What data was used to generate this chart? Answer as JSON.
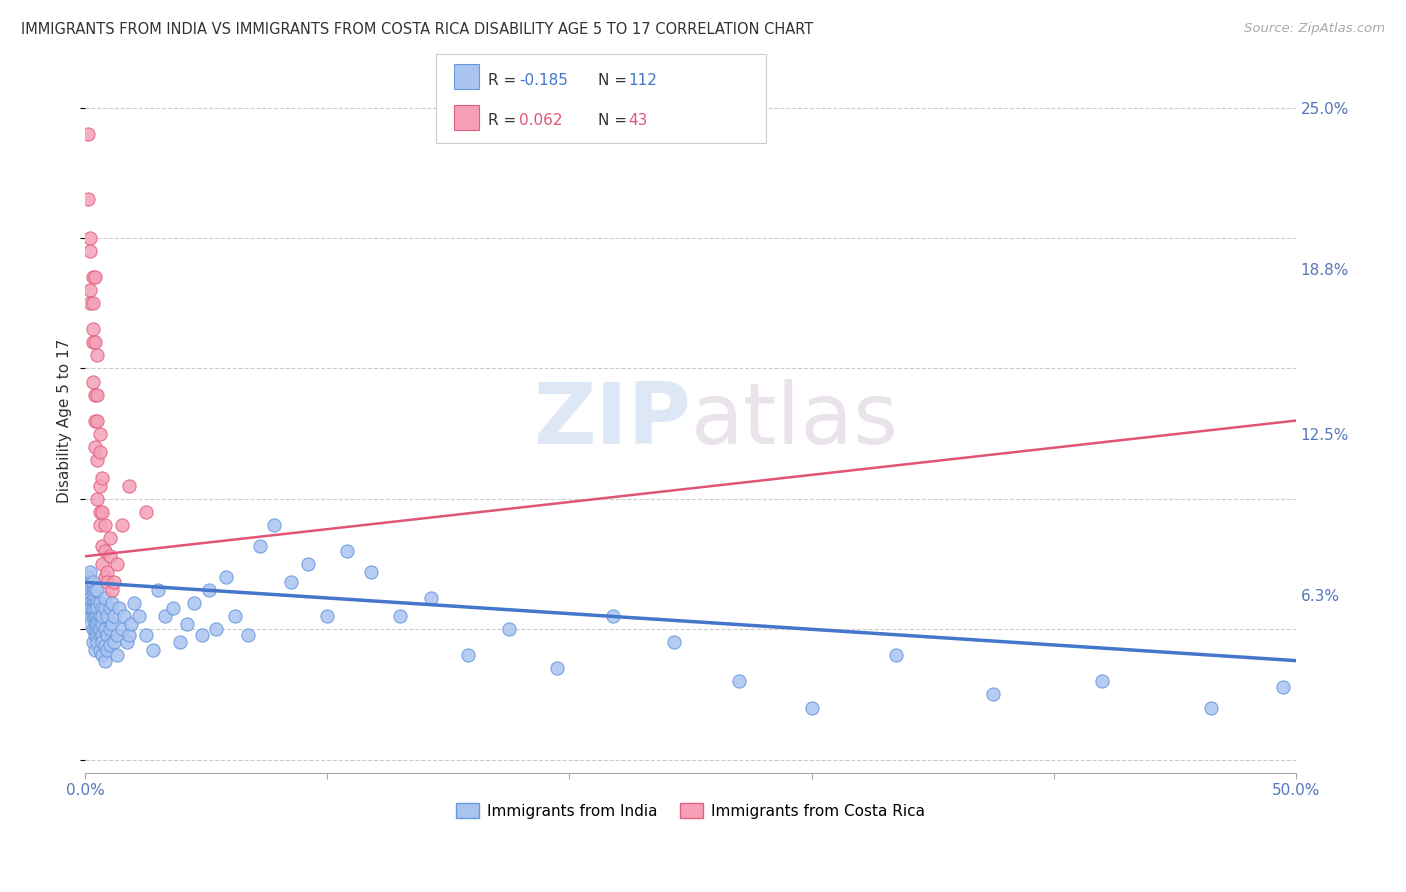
{
  "title": "IMMIGRANTS FROM INDIA VS IMMIGRANTS FROM COSTA RICA DISABILITY AGE 5 TO 17 CORRELATION CHART",
  "source": "Source: ZipAtlas.com",
  "ylabel": "Disability Age 5 to 17",
  "xlim": [
    0.0,
    0.5
  ],
  "ylim": [
    -0.005,
    0.265
  ],
  "xtick_positions": [
    0.0,
    0.1,
    0.2,
    0.3,
    0.4,
    0.5
  ],
  "xticklabels_ends": [
    "0.0%",
    "50.0%"
  ],
  "ytick_positions": [
    0.063,
    0.125,
    0.188,
    0.25
  ],
  "ytick_labels": [
    "6.3%",
    "12.5%",
    "18.8%",
    "25.0%"
  ],
  "grid_color": "#cccccc",
  "background_color": "#ffffff",
  "watermark_zip": "ZIP",
  "watermark_atlas": "atlas",
  "blue_color": "#aac4f0",
  "blue_edge": "#6699dd",
  "pink_color": "#f5a0b8",
  "pink_edge": "#e06080",
  "blue_line": "#4477cc",
  "pink_line": "#e05575",
  "india_x": [
    0.001,
    0.001,
    0.001,
    0.001,
    0.001,
    0.002,
    0.002,
    0.002,
    0.002,
    0.002,
    0.002,
    0.002,
    0.003,
    0.003,
    0.003,
    0.003,
    0.003,
    0.003,
    0.003,
    0.003,
    0.003,
    0.004,
    0.004,
    0.004,
    0.004,
    0.004,
    0.004,
    0.004,
    0.004,
    0.004,
    0.004,
    0.005,
    0.005,
    0.005,
    0.005,
    0.005,
    0.005,
    0.005,
    0.005,
    0.005,
    0.006,
    0.006,
    0.006,
    0.006,
    0.006,
    0.006,
    0.007,
    0.007,
    0.007,
    0.007,
    0.007,
    0.007,
    0.008,
    0.008,
    0.008,
    0.008,
    0.008,
    0.009,
    0.009,
    0.009,
    0.01,
    0.01,
    0.01,
    0.011,
    0.011,
    0.012,
    0.012,
    0.013,
    0.013,
    0.014,
    0.015,
    0.016,
    0.017,
    0.018,
    0.019,
    0.02,
    0.022,
    0.025,
    0.028,
    0.03,
    0.033,
    0.036,
    0.039,
    0.042,
    0.045,
    0.048,
    0.051,
    0.054,
    0.058,
    0.062,
    0.067,
    0.072,
    0.078,
    0.085,
    0.092,
    0.1,
    0.108,
    0.118,
    0.13,
    0.143,
    0.158,
    0.175,
    0.195,
    0.218,
    0.243,
    0.27,
    0.3,
    0.335,
    0.375,
    0.42,
    0.465,
    0.495
  ],
  "india_y": [
    0.06,
    0.065,
    0.055,
    0.07,
    0.063,
    0.058,
    0.068,
    0.072,
    0.052,
    0.062,
    0.06,
    0.058,
    0.065,
    0.055,
    0.06,
    0.068,
    0.05,
    0.063,
    0.057,
    0.045,
    0.058,
    0.055,
    0.06,
    0.063,
    0.048,
    0.055,
    0.058,
    0.052,
    0.05,
    0.065,
    0.042,
    0.055,
    0.06,
    0.05,
    0.058,
    0.048,
    0.053,
    0.045,
    0.065,
    0.052,
    0.055,
    0.048,
    0.06,
    0.042,
    0.052,
    0.05,
    0.058,
    0.048,
    0.052,
    0.045,
    0.055,
    0.04,
    0.05,
    0.058,
    0.044,
    0.062,
    0.038,
    0.055,
    0.048,
    0.042,
    0.05,
    0.058,
    0.044,
    0.052,
    0.06,
    0.045,
    0.055,
    0.048,
    0.04,
    0.058,
    0.05,
    0.055,
    0.045,
    0.048,
    0.052,
    0.06,
    0.055,
    0.048,
    0.042,
    0.065,
    0.055,
    0.058,
    0.045,
    0.052,
    0.06,
    0.048,
    0.065,
    0.05,
    0.07,
    0.055,
    0.048,
    0.082,
    0.09,
    0.068,
    0.075,
    0.055,
    0.08,
    0.072,
    0.055,
    0.062,
    0.04,
    0.05,
    0.035,
    0.055,
    0.045,
    0.03,
    0.02,
    0.04,
    0.025,
    0.03,
    0.02,
    0.028
  ],
  "costarica_x": [
    0.001,
    0.001,
    0.002,
    0.002,
    0.002,
    0.002,
    0.003,
    0.003,
    0.003,
    0.003,
    0.003,
    0.004,
    0.004,
    0.004,
    0.004,
    0.004,
    0.005,
    0.005,
    0.005,
    0.005,
    0.005,
    0.006,
    0.006,
    0.006,
    0.006,
    0.006,
    0.007,
    0.007,
    0.007,
    0.007,
    0.008,
    0.008,
    0.008,
    0.009,
    0.009,
    0.01,
    0.01,
    0.011,
    0.012,
    0.013,
    0.015,
    0.018,
    0.025
  ],
  "costarica_y": [
    0.24,
    0.215,
    0.2,
    0.18,
    0.195,
    0.175,
    0.185,
    0.165,
    0.145,
    0.175,
    0.16,
    0.185,
    0.16,
    0.14,
    0.12,
    0.13,
    0.155,
    0.13,
    0.115,
    0.1,
    0.14,
    0.095,
    0.118,
    0.105,
    0.125,
    0.09,
    0.082,
    0.095,
    0.108,
    0.075,
    0.08,
    0.07,
    0.09,
    0.072,
    0.068,
    0.078,
    0.085,
    0.065,
    0.068,
    0.075,
    0.09,
    0.105,
    0.095
  ],
  "india_trend_x": [
    0.0,
    0.5
  ],
  "india_trend_y": [
    0.068,
    0.038
  ],
  "costarica_trend_x": [
    0.0,
    0.5
  ],
  "costarica_trend_y": [
    0.078,
    0.13
  ]
}
